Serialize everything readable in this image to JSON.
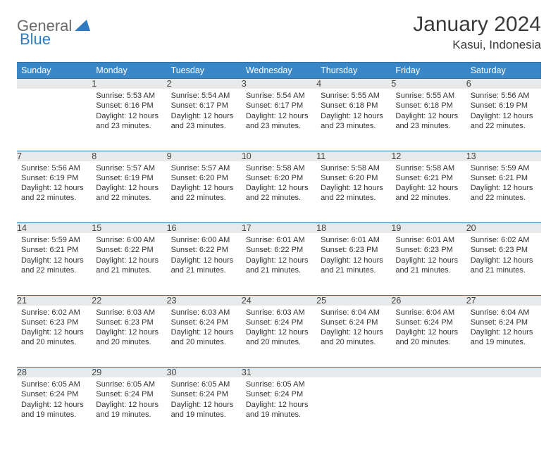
{
  "logo": {
    "text1": "General",
    "text2": "Blue"
  },
  "title": "January 2024",
  "location": "Kasui, Indonesia",
  "colors": {
    "header_bg": "#3a87c7",
    "header_text": "#ffffff",
    "daynum_bg": "#e7e9ea",
    "border": "#2f6fa3",
    "logo_gray": "#6a6a6a",
    "logo_blue": "#2f7bbf"
  },
  "weekdays": [
    "Sunday",
    "Monday",
    "Tuesday",
    "Wednesday",
    "Thursday",
    "Friday",
    "Saturday"
  ],
  "weeks": [
    [
      {
        "num": "",
        "sunrise": "",
        "sunset": "",
        "daylight": ""
      },
      {
        "num": "1",
        "sunrise": "Sunrise: 5:53 AM",
        "sunset": "Sunset: 6:16 PM",
        "daylight": "Daylight: 12 hours and 23 minutes."
      },
      {
        "num": "2",
        "sunrise": "Sunrise: 5:54 AM",
        "sunset": "Sunset: 6:17 PM",
        "daylight": "Daylight: 12 hours and 23 minutes."
      },
      {
        "num": "3",
        "sunrise": "Sunrise: 5:54 AM",
        "sunset": "Sunset: 6:17 PM",
        "daylight": "Daylight: 12 hours and 23 minutes."
      },
      {
        "num": "4",
        "sunrise": "Sunrise: 5:55 AM",
        "sunset": "Sunset: 6:18 PM",
        "daylight": "Daylight: 12 hours and 23 minutes."
      },
      {
        "num": "5",
        "sunrise": "Sunrise: 5:55 AM",
        "sunset": "Sunset: 6:18 PM",
        "daylight": "Daylight: 12 hours and 23 minutes."
      },
      {
        "num": "6",
        "sunrise": "Sunrise: 5:56 AM",
        "sunset": "Sunset: 6:19 PM",
        "daylight": "Daylight: 12 hours and 22 minutes."
      }
    ],
    [
      {
        "num": "7",
        "sunrise": "Sunrise: 5:56 AM",
        "sunset": "Sunset: 6:19 PM",
        "daylight": "Daylight: 12 hours and 22 minutes."
      },
      {
        "num": "8",
        "sunrise": "Sunrise: 5:57 AM",
        "sunset": "Sunset: 6:19 PM",
        "daylight": "Daylight: 12 hours and 22 minutes."
      },
      {
        "num": "9",
        "sunrise": "Sunrise: 5:57 AM",
        "sunset": "Sunset: 6:20 PM",
        "daylight": "Daylight: 12 hours and 22 minutes."
      },
      {
        "num": "10",
        "sunrise": "Sunrise: 5:58 AM",
        "sunset": "Sunset: 6:20 PM",
        "daylight": "Daylight: 12 hours and 22 minutes."
      },
      {
        "num": "11",
        "sunrise": "Sunrise: 5:58 AM",
        "sunset": "Sunset: 6:20 PM",
        "daylight": "Daylight: 12 hours and 22 minutes."
      },
      {
        "num": "12",
        "sunrise": "Sunrise: 5:58 AM",
        "sunset": "Sunset: 6:21 PM",
        "daylight": "Daylight: 12 hours and 22 minutes."
      },
      {
        "num": "13",
        "sunrise": "Sunrise: 5:59 AM",
        "sunset": "Sunset: 6:21 PM",
        "daylight": "Daylight: 12 hours and 22 minutes."
      }
    ],
    [
      {
        "num": "14",
        "sunrise": "Sunrise: 5:59 AM",
        "sunset": "Sunset: 6:21 PM",
        "daylight": "Daylight: 12 hours and 22 minutes."
      },
      {
        "num": "15",
        "sunrise": "Sunrise: 6:00 AM",
        "sunset": "Sunset: 6:22 PM",
        "daylight": "Daylight: 12 hours and 21 minutes."
      },
      {
        "num": "16",
        "sunrise": "Sunrise: 6:00 AM",
        "sunset": "Sunset: 6:22 PM",
        "daylight": "Daylight: 12 hours and 21 minutes."
      },
      {
        "num": "17",
        "sunrise": "Sunrise: 6:01 AM",
        "sunset": "Sunset: 6:22 PM",
        "daylight": "Daylight: 12 hours and 21 minutes."
      },
      {
        "num": "18",
        "sunrise": "Sunrise: 6:01 AM",
        "sunset": "Sunset: 6:23 PM",
        "daylight": "Daylight: 12 hours and 21 minutes."
      },
      {
        "num": "19",
        "sunrise": "Sunrise: 6:01 AM",
        "sunset": "Sunset: 6:23 PM",
        "daylight": "Daylight: 12 hours and 21 minutes."
      },
      {
        "num": "20",
        "sunrise": "Sunrise: 6:02 AM",
        "sunset": "Sunset: 6:23 PM",
        "daylight": "Daylight: 12 hours and 21 minutes."
      }
    ],
    [
      {
        "num": "21",
        "sunrise": "Sunrise: 6:02 AM",
        "sunset": "Sunset: 6:23 PM",
        "daylight": "Daylight: 12 hours and 20 minutes."
      },
      {
        "num": "22",
        "sunrise": "Sunrise: 6:03 AM",
        "sunset": "Sunset: 6:23 PM",
        "daylight": "Daylight: 12 hours and 20 minutes."
      },
      {
        "num": "23",
        "sunrise": "Sunrise: 6:03 AM",
        "sunset": "Sunset: 6:24 PM",
        "daylight": "Daylight: 12 hours and 20 minutes."
      },
      {
        "num": "24",
        "sunrise": "Sunrise: 6:03 AM",
        "sunset": "Sunset: 6:24 PM",
        "daylight": "Daylight: 12 hours and 20 minutes."
      },
      {
        "num": "25",
        "sunrise": "Sunrise: 6:04 AM",
        "sunset": "Sunset: 6:24 PM",
        "daylight": "Daylight: 12 hours and 20 minutes."
      },
      {
        "num": "26",
        "sunrise": "Sunrise: 6:04 AM",
        "sunset": "Sunset: 6:24 PM",
        "daylight": "Daylight: 12 hours and 20 minutes."
      },
      {
        "num": "27",
        "sunrise": "Sunrise: 6:04 AM",
        "sunset": "Sunset: 6:24 PM",
        "daylight": "Daylight: 12 hours and 19 minutes."
      }
    ],
    [
      {
        "num": "28",
        "sunrise": "Sunrise: 6:05 AM",
        "sunset": "Sunset: 6:24 PM",
        "daylight": "Daylight: 12 hours and 19 minutes."
      },
      {
        "num": "29",
        "sunrise": "Sunrise: 6:05 AM",
        "sunset": "Sunset: 6:24 PM",
        "daylight": "Daylight: 12 hours and 19 minutes."
      },
      {
        "num": "30",
        "sunrise": "Sunrise: 6:05 AM",
        "sunset": "Sunset: 6:24 PM",
        "daylight": "Daylight: 12 hours and 19 minutes."
      },
      {
        "num": "31",
        "sunrise": "Sunrise: 6:05 AM",
        "sunset": "Sunset: 6:24 PM",
        "daylight": "Daylight: 12 hours and 19 minutes."
      },
      {
        "num": "",
        "sunrise": "",
        "sunset": "",
        "daylight": ""
      },
      {
        "num": "",
        "sunrise": "",
        "sunset": "",
        "daylight": ""
      },
      {
        "num": "",
        "sunrise": "",
        "sunset": "",
        "daylight": ""
      }
    ]
  ]
}
